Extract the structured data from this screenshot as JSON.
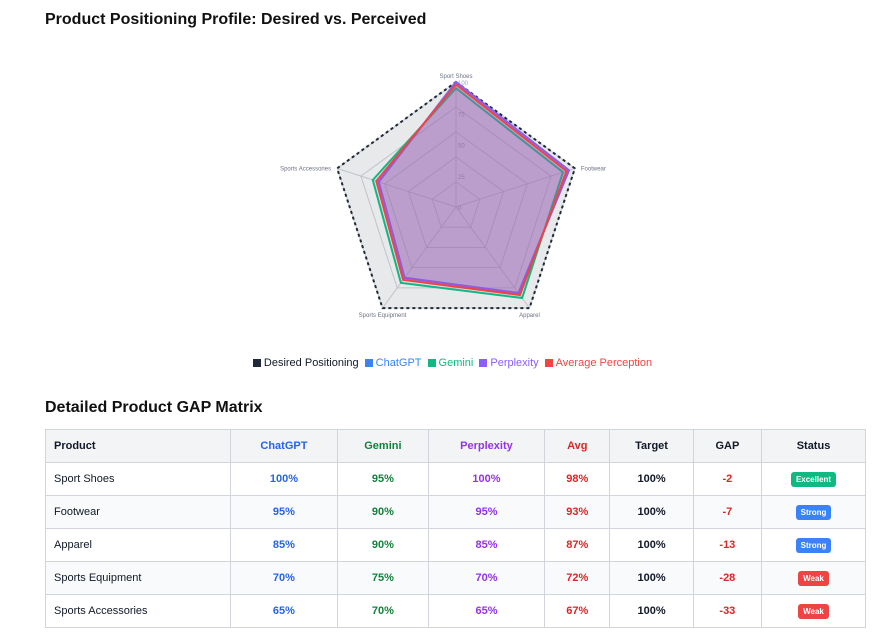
{
  "page_title": "Product Positioning Profile: Desired vs. Perceived",
  "chart_data": {
    "type": "radar",
    "axes": [
      "Sport Shoes",
      "Footwear",
      "Apparel",
      "Sports Equipment",
      "Sports Accessories"
    ],
    "rlim": [
      0,
      100
    ],
    "tick_labels": [
      "0",
      "25",
      "50",
      "75",
      "100"
    ],
    "series": [
      {
        "name": "Desired Positioning",
        "values": [
          100,
          100,
          100,
          100,
          100
        ],
        "color": "#1f2937"
      },
      {
        "name": "ChatGPT",
        "values": [
          100,
          95,
          85,
          70,
          65
        ],
        "color": "#3b82f6"
      },
      {
        "name": "Gemini",
        "values": [
          95,
          90,
          90,
          75,
          70
        ],
        "color": "#10b981"
      },
      {
        "name": "Perplexity",
        "values": [
          100,
          95,
          85,
          70,
          65
        ],
        "color": "#8b5cf6"
      },
      {
        "name": "Average Perception",
        "values": [
          98,
          93,
          87,
          72,
          67
        ],
        "color": "#ef4444"
      }
    ],
    "legend_position": "bottom"
  },
  "table": {
    "title": "Detailed Product GAP Matrix",
    "headers": [
      {
        "label": "Product",
        "color": "#111827"
      },
      {
        "label": "ChatGPT",
        "color": "#2563eb"
      },
      {
        "label": "Gemini",
        "color": "#15803d"
      },
      {
        "label": "Perplexity",
        "color": "#9333ea"
      },
      {
        "label": "Avg",
        "color": "#dc2626"
      },
      {
        "label": "Target",
        "color": "#111827"
      },
      {
        "label": "GAP",
        "color": "#111827"
      },
      {
        "label": "Status",
        "color": "#111827"
      }
    ],
    "rows": [
      {
        "product": "Sport Shoes",
        "chatgpt": "100%",
        "gemini": "95%",
        "perplexity": "100%",
        "avg": "98%",
        "target": "100%",
        "gap": "-2",
        "status": "Excellent",
        "status_color": "#10b981"
      },
      {
        "product": "Footwear",
        "chatgpt": "95%",
        "gemini": "90%",
        "perplexity": "95%",
        "avg": "93%",
        "target": "100%",
        "gap": "-7",
        "status": "Strong",
        "status_color": "#3b82f6"
      },
      {
        "product": "Apparel",
        "chatgpt": "85%",
        "gemini": "90%",
        "perplexity": "85%",
        "avg": "87%",
        "target": "100%",
        "gap": "-13",
        "status": "Strong",
        "status_color": "#3b82f6"
      },
      {
        "product": "Sports Equipment",
        "chatgpt": "70%",
        "gemini": "75%",
        "perplexity": "70%",
        "avg": "72%",
        "target": "100%",
        "gap": "-28",
        "status": "Weak",
        "status_color": "#ef4444"
      },
      {
        "product": "Sports Accessories",
        "chatgpt": "65%",
        "gemini": "70%",
        "perplexity": "65%",
        "avg": "67%",
        "target": "100%",
        "gap": "-33",
        "status": "Weak",
        "status_color": "#ef4444"
      }
    ],
    "cell_colors": {
      "chatgpt": "#2563eb",
      "gemini": "#15803d",
      "perplexity": "#9333ea",
      "avg": "#dc2626",
      "target": "#111827",
      "gap": "#dc2626"
    }
  }
}
